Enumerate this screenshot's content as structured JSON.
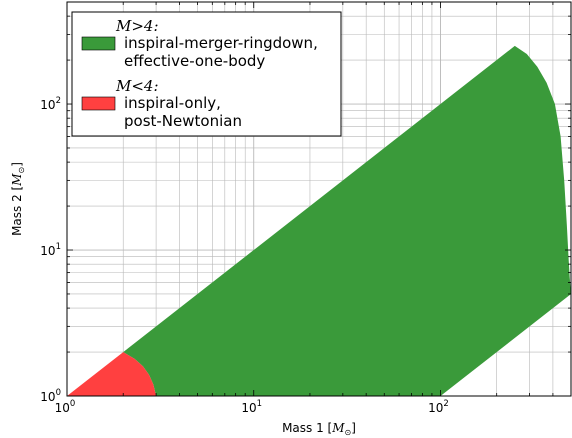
{
  "chart_data": {
    "type": "area",
    "xscale": "log",
    "yscale": "log",
    "xlim": [
      1,
      500
    ],
    "ylim": [
      1,
      500
    ],
    "grid": true,
    "legend_position": "upper-left",
    "xlabel": "Mass 1 [",
    "xlabel_symbol": "M",
    "xlabel_sub": "⊙",
    "xlabel_end": "]",
    "ylabel": "Mass 2 [",
    "ylabel_symbol": "M",
    "ylabel_sub": "⊙",
    "ylabel_end": "]",
    "x_ticks": [
      {
        "value": 1,
        "base": "10",
        "exp": "0"
      },
      {
        "value": 10,
        "base": "10",
        "exp": "1"
      },
      {
        "value": 100,
        "base": "10",
        "exp": "2"
      }
    ],
    "y_ticks": [
      {
        "value": 1,
        "base": "10",
        "exp": "0"
      },
      {
        "value": 10,
        "base": "10",
        "exp": "1"
      },
      {
        "value": 100,
        "base": "10",
        "exp": "2"
      }
    ],
    "regions": [
      {
        "header": "M>4:",
        "labels": [
          "inspiral-merger-ringdown,",
          "effective-one-body"
        ],
        "color": "#3a9a3a",
        "outline": [
          [
            2,
            2
          ],
          [
            250,
            250
          ],
          [
            290,
            220
          ],
          [
            330,
            180
          ],
          [
            370,
            140
          ],
          [
            410,
            100
          ],
          [
            440,
            60
          ],
          [
            460,
            30
          ],
          [
            475,
            15
          ],
          [
            485,
            9
          ],
          [
            492,
            6.5
          ],
          [
            500,
            5
          ],
          [
            100,
            1
          ],
          [
            3,
            1
          ],
          [
            2.9,
            1.2
          ],
          [
            2.75,
            1.4
          ],
          [
            2.55,
            1.6
          ],
          [
            2.3,
            1.8
          ]
        ]
      },
      {
        "header": "M<4:",
        "labels": [
          "inspiral-only,",
          "post-Newtonian"
        ],
        "color": "#ff4040",
        "outline": [
          [
            1,
            1
          ],
          [
            2,
            2
          ],
          [
            2.3,
            1.8
          ],
          [
            2.55,
            1.6
          ],
          [
            2.75,
            1.4
          ],
          [
            2.9,
            1.2
          ],
          [
            3,
            1
          ]
        ]
      }
    ]
  }
}
